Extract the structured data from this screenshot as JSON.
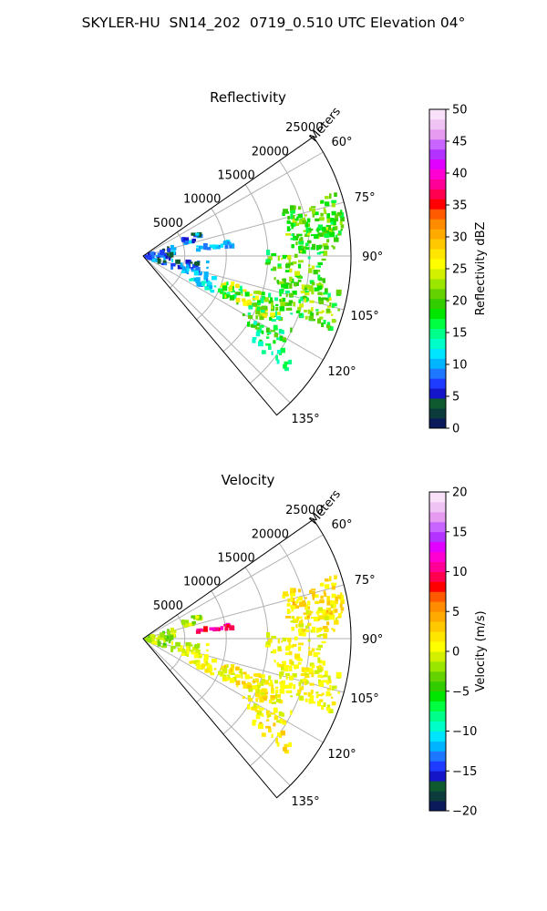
{
  "figure": {
    "title": "SKYLER-HU  SN14_202  0719_0.510 UTC Elevation 04°"
  },
  "chart_data": [
    {
      "type": "heatmap",
      "projection": "polar-sector",
      "title": "Reflectivity",
      "radial_label": "Meters",
      "r_ticks": [
        5000,
        10000,
        15000,
        20000,
        25000
      ],
      "r_tick_labels": [
        "5000",
        "10000",
        "15000",
        "20000",
        "25000"
      ],
      "rlim": [
        0,
        25000
      ],
      "theta_ticks": [
        60,
        75,
        90,
        105,
        120,
        135
      ],
      "theta_tick_labels": [
        "60°",
        "75°",
        "90°",
        "105°",
        "120°",
        "135°"
      ],
      "theta_range_deg": [
        55,
        140
      ],
      "grid": true,
      "colorbar": {
        "label": "Reflectivity dBZ",
        "range": [
          0,
          50
        ],
        "ticks": [
          0,
          5,
          10,
          15,
          20,
          25,
          30,
          35,
          40,
          45,
          50
        ],
        "tick_labels": [
          "0",
          "5",
          "10",
          "15",
          "20",
          "25",
          "30",
          "35",
          "40",
          "45",
          "50"
        ],
        "colors": [
          "#0a1a5a",
          "#0b3b3b",
          "#0f5a2e",
          "#1414c8",
          "#1e3cff",
          "#1e78ff",
          "#00b4ff",
          "#00e5ff",
          "#00ffc8",
          "#00ff8a",
          "#00ff40",
          "#00e600",
          "#32cd00",
          "#64d200",
          "#9be600",
          "#d2f000",
          "#ffff00",
          "#ffe600",
          "#ffc800",
          "#ffaa00",
          "#ff8c00",
          "#ff5a00",
          "#ff0000",
          "#ff0050",
          "#ff0096",
          "#ff00d2",
          "#e100ff",
          "#b432ff",
          "#c864ff",
          "#e69bf0",
          "#f0c3f5",
          "#fae1fa"
        ]
      },
      "clusters": [
        {
          "az": 78,
          "r": [
            17500,
            24500
          ],
          "az_spread": 6,
          "v": [
            16,
            24
          ],
          "n": 95
        },
        {
          "az": 84,
          "r": [
            18000,
            23500
          ],
          "az_spread": 4,
          "v": [
            15,
            22
          ],
          "n": 45
        },
        {
          "az": 95,
          "r": [
            15000,
            22000
          ],
          "az_spread": 7,
          "v": [
            15,
            24
          ],
          "n": 70
        },
        {
          "az": 106,
          "r": [
            17000,
            24500
          ],
          "az_spread": 6,
          "v": [
            15,
            25
          ],
          "n": 100
        },
        {
          "az": 112,
          "r": [
            10000,
            18000
          ],
          "az_spread": 5,
          "v": [
            14,
            28
          ],
          "n": 95
        },
        {
          "az": 118,
          "r": [
            14000,
            20000
          ],
          "az_spread": 5,
          "v": [
            13,
            22
          ],
          "n": 40
        },
        {
          "az": 126,
          "r": [
            16000,
            22000
          ],
          "az_spread": 3,
          "v": [
            13,
            18
          ],
          "n": 20
        },
        {
          "az": 82,
          "r": [
            6500,
            11000
          ],
          "az_spread": 2,
          "v": [
            8,
            12
          ],
          "n": 25
        },
        {
          "az": 70,
          "r": [
            5000,
            7500
          ],
          "az_spread": 4,
          "v": [
            4,
            12
          ],
          "n": 18
        },
        {
          "az": 101,
          "r": [
            4000,
            8000
          ],
          "az_spread": 6,
          "v": [
            4,
            12
          ],
          "n": 30
        },
        {
          "az": 112,
          "r": [
            5000,
            9500
          ],
          "az_spread": 5,
          "v": [
            8,
            14
          ],
          "n": 30
        },
        {
          "az": 93,
          "r": [
            300,
            4000
          ],
          "az_spread": 20,
          "v": [
            3,
            12
          ],
          "n": 40
        }
      ]
    },
    {
      "type": "heatmap",
      "projection": "polar-sector",
      "title": "Velocity",
      "radial_label": "Meters",
      "r_ticks": [
        5000,
        10000,
        15000,
        20000,
        25000
      ],
      "r_tick_labels": [
        "5000",
        "10000",
        "15000",
        "20000",
        "25000"
      ],
      "rlim": [
        0,
        25000
      ],
      "theta_ticks": [
        60,
        75,
        90,
        105,
        120,
        135
      ],
      "theta_tick_labels": [
        "60°",
        "75°",
        "90°",
        "105°",
        "120°",
        "135°"
      ],
      "theta_range_deg": [
        55,
        140
      ],
      "grid": true,
      "colorbar": {
        "label": "Velocity (m/s)",
        "range": [
          -20,
          20
        ],
        "ticks": [
          -20,
          -15,
          -10,
          -5,
          0,
          5,
          10,
          15,
          20
        ],
        "tick_labels": [
          "−20",
          "−15",
          "−10",
          "−5",
          "0",
          "5",
          "10",
          "15",
          "20"
        ],
        "colors": [
          "#0a1a5a",
          "#0b3b3b",
          "#0f5a2e",
          "#1414c8",
          "#1e3cff",
          "#1e78ff",
          "#00b4ff",
          "#00e5ff",
          "#00ffc8",
          "#00ff8a",
          "#00ff40",
          "#00e600",
          "#32cd00",
          "#64d200",
          "#9be600",
          "#d2f000",
          "#ffff00",
          "#ffe600",
          "#ffc800",
          "#ffaa00",
          "#ff8c00",
          "#ff5a00",
          "#ff0000",
          "#ff0050",
          "#ff0096",
          "#ff00d2",
          "#e100ff",
          "#b432ff",
          "#c864ff",
          "#e69bf0",
          "#f0c3f5",
          "#fae1fa"
        ]
      },
      "clusters": [
        {
          "az": 78,
          "r": [
            17500,
            24500
          ],
          "az_spread": 6,
          "v": [
            0,
            4
          ],
          "n": 95
        },
        {
          "az": 84,
          "r": [
            18000,
            23500
          ],
          "az_spread": 4,
          "v": [
            -1,
            3
          ],
          "n": 45
        },
        {
          "az": 95,
          "r": [
            15000,
            22000
          ],
          "az_spread": 7,
          "v": [
            -1,
            2
          ],
          "n": 70
        },
        {
          "az": 106,
          "r": [
            17000,
            24500
          ],
          "az_spread": 6,
          "v": [
            -1,
            2
          ],
          "n": 100
        },
        {
          "az": 112,
          "r": [
            10000,
            18000
          ],
          "az_spread": 5,
          "v": [
            -1,
            3
          ],
          "n": 95
        },
        {
          "az": 118,
          "r": [
            14000,
            20000
          ],
          "az_spread": 5,
          "v": [
            -1,
            2
          ],
          "n": 40
        },
        {
          "az": 126,
          "r": [
            16000,
            22000
          ],
          "az_spread": 3,
          "v": [
            0,
            4
          ],
          "n": 20
        },
        {
          "az": 82,
          "r": [
            6500,
            11000
          ],
          "az_spread": 1.5,
          "v": [
            8,
            12
          ],
          "n": 22
        },
        {
          "az": 70,
          "r": [
            5000,
            7500
          ],
          "az_spread": 4,
          "v": [
            -3,
            1
          ],
          "n": 18
        },
        {
          "az": 101,
          "r": [
            4000,
            8000
          ],
          "az_spread": 6,
          "v": [
            -2,
            1
          ],
          "n": 30
        },
        {
          "az": 112,
          "r": [
            5000,
            9500
          ],
          "az_spread": 5,
          "v": [
            -1,
            2
          ],
          "n": 30
        },
        {
          "az": 93,
          "r": [
            300,
            4000
          ],
          "az_spread": 20,
          "v": [
            -4,
            1
          ],
          "n": 40
        }
      ]
    }
  ]
}
